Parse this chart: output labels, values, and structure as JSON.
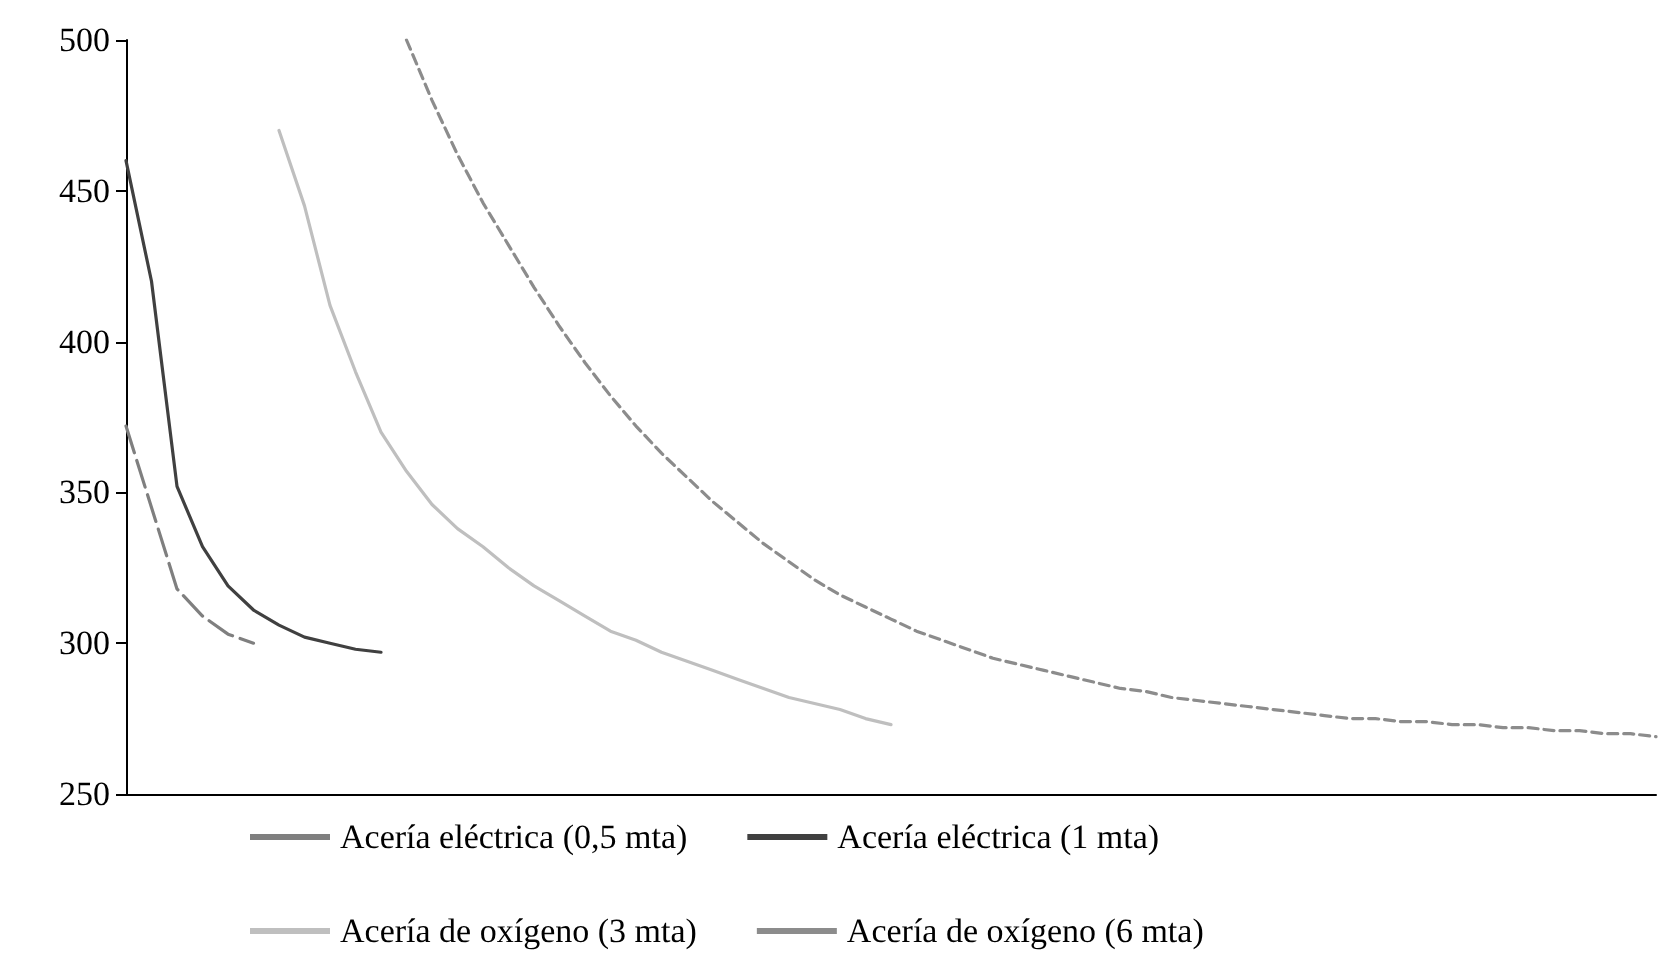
{
  "chart_data": {
    "type": "line",
    "categories": [
      null,
      null,
      null,
      null,
      null,
      null,
      null,
      null,
      null,
      null,
      null,
      null,
      null,
      null,
      null,
      null,
      null,
      null,
      null,
      null,
      null,
      null,
      null,
      null,
      null,
      null,
      null,
      null,
      null,
      null,
      null,
      null,
      null,
      null,
      null,
      null,
      null,
      null,
      null,
      null,
      null,
      null,
      null,
      null,
      null,
      null,
      null,
      null,
      null,
      null,
      null,
      null,
      null,
      null,
      null,
      null,
      null,
      null,
      null,
      null,
      null
    ],
    "series": [
      {
        "name": "Acería eléctrica (0,5 mta)",
        "color": "#7f7f7f",
        "line_style": "dashed",
        "values": [
          372,
          345,
          318,
          309,
          303,
          300,
          null,
          null,
          null,
          null,
          null,
          null,
          null,
          null,
          null,
          null,
          null,
          null,
          null,
          null,
          null,
          null,
          null,
          null,
          null,
          null,
          null,
          null,
          null,
          null,
          null,
          null,
          null,
          null,
          null,
          null,
          null,
          null,
          null,
          null,
          null,
          null,
          null,
          null,
          null,
          null,
          null,
          null,
          null,
          null,
          null,
          null,
          null,
          null,
          null,
          null,
          null,
          null,
          null,
          null,
          null
        ]
      },
      {
        "name": "Acería eléctrica (1 mta)",
        "color": "#404040",
        "line_style": "solid",
        "values": [
          460,
          420,
          352,
          332,
          319,
          311,
          306,
          302,
          300,
          298,
          297,
          null,
          null,
          null,
          null,
          null,
          null,
          null,
          null,
          null,
          null,
          null,
          null,
          null,
          null,
          null,
          null,
          null,
          null,
          null,
          null,
          null,
          null,
          null,
          null,
          null,
          null,
          null,
          null,
          null,
          null,
          null,
          null,
          null,
          null,
          null,
          null,
          null,
          null,
          null,
          null,
          null,
          null,
          null,
          null,
          null,
          null,
          null,
          null,
          null,
          null
        ]
      },
      {
        "name": "Acería de oxígeno (3 mta)",
        "color": "#bfbfbf",
        "line_style": "solid",
        "values": [
          null,
          null,
          null,
          null,
          null,
          null,
          470,
          445,
          412,
          390,
          370,
          357,
          346,
          338,
          332,
          325,
          319,
          314,
          309,
          304,
          301,
          297,
          294,
          291,
          288,
          285,
          282,
          280,
          278,
          275,
          273,
          null,
          null,
          null,
          null,
          null,
          null,
          null,
          null,
          null,
          null,
          null,
          null,
          null,
          null,
          null,
          null,
          null,
          null,
          null,
          null,
          null,
          null,
          null,
          null,
          null,
          null,
          null,
          null,
          null,
          null
        ]
      },
      {
        "name": "Acería de oxígeno (6 mta)",
        "color": "#8c8c8c",
        "line_style": "dotted",
        "values": [
          null,
          null,
          null,
          null,
          null,
          null,
          null,
          null,
          null,
          null,
          null,
          500,
          480,
          462,
          446,
          432,
          418,
          405,
          393,
          382,
          372,
          363,
          355,
          347,
          340,
          333,
          327,
          321,
          316,
          312,
          308,
          304,
          301,
          298,
          295,
          293,
          291,
          289,
          287,
          285,
          284,
          282,
          281,
          280,
          279,
          278,
          277,
          276,
          275,
          275,
          274,
          274,
          273,
          273,
          272,
          272,
          271,
          271,
          270,
          270,
          269
        ]
      }
    ],
    "ylim": [
      250,
      500
    ],
    "yticks": [
      250,
      300,
      350,
      400,
      450,
      500
    ],
    "grid": false,
    "legend": "bottom",
    "marker": "none"
  }
}
